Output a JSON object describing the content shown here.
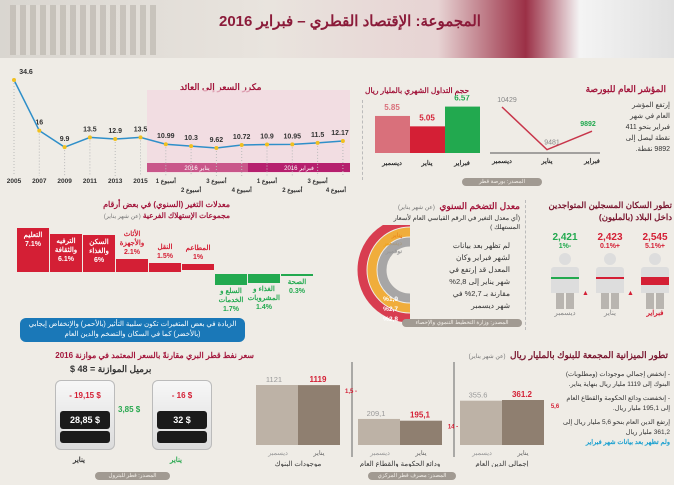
{
  "header": {
    "title": "المجموعة: الإقتصاد القطري – فبراير 2016"
  },
  "pe": {
    "title": "مكرر السعر إلى العائد",
    "month_jan": "يناير 2016",
    "month_feb": "فبراير 2016",
    "labels": [
      "2005",
      "2007",
      "2009",
      "2011",
      "2013",
      "2015",
      "أسبوع 1",
      "أسبوع 2",
      "أسبوع 3",
      "أسبوع 4",
      "أسبوع 1",
      "أسبوع 2",
      "أسبوع 3",
      "أسبوع 4"
    ],
    "values": [
      34.6,
      16,
      9.9,
      13.5,
      12.9,
      13.5,
      10.99,
      10.3,
      9.62,
      10.72,
      10.9,
      10.95,
      11.5,
      12.17
    ],
    "color": "#2f8fc9"
  },
  "volume": {
    "title": "حجم التداول الشهري بالمليار ريال",
    "categories": [
      "ديسمبر",
      "يناير",
      "فبراير"
    ],
    "values": [
      5.85,
      5.05,
      6.57
    ],
    "colors": [
      "#d9707b",
      "#d41f35",
      "#22a94f"
    ]
  },
  "index": {
    "title": "المؤشر العام للبورصة",
    "categories": [
      "ديسمبر",
      "يناير",
      "فبراير"
    ],
    "values": [
      10429,
      9481,
      9892
    ],
    "text": [
      "إرتفع المؤشر",
      "العام في شهر",
      "فبراير بنحو 411",
      "نقطة ليصل إلى",
      "9892 نقطة."
    ],
    "source": "المصدر: بورصة قطر"
  },
  "consumption": {
    "title1": "معدلات التغير (السنوي) في بعض أرقام",
    "title2": "مجموعات الإستهلاك الفرعية",
    "note": "(عن شهر يناير)",
    "items": [
      {
        "label": "التعليم",
        "value": "7.1%",
        "v": 7.1
      },
      {
        "label": "الترفيه والثقافة",
        "value": "6.1%",
        "v": 6.1
      },
      {
        "label": "السكن والغذاء",
        "value": "6%",
        "v": 6
      },
      {
        "label": "الأثاث والأجهزة",
        "value": "2.1%",
        "v": 2.1
      },
      {
        "label": "النقل",
        "value": "1.5%",
        "v": 1.5
      },
      {
        "label": "المطاعم",
        "value": "1%",
        "v": 1
      },
      {
        "label": "السلع و الخدمات",
        "value": "1.7%",
        "v": -1.7
      },
      {
        "label": "الغذاء و المشروبات",
        "value": "1.4%",
        "v": -1.4
      },
      {
        "label": "الصحة",
        "value": "0.3%",
        "v": -0.3
      }
    ]
  },
  "note_box": "الزيادة في بعض المتغيرات تكون سلبية التأثير (بالأحمر) والإنخفاض إيجابي (بالأخضر) كما في السكان والتضخم والدين العام",
  "inflation": {
    "title": "معدل التضخم السنوي",
    "note": "(عن شهر يناير)",
    "sub": "(أي معدل التغير في الرقم القياسي العام لأسعار المستهلك )",
    "legend": [
      "يناير",
      "ديسمبر",
      "نوفمبر"
    ],
    "values": [
      "%2,8",
      "%2,7",
      "%1,9"
    ],
    "colors": [
      "#d41f35",
      "#f0a21c",
      "#9a9a9a"
    ],
    "text": [
      "لم تظهر بعد بيانات",
      "لشهر فبراير وكان",
      "المعدل قد إرتفع في",
      "شهر يناير إلى 2,8%",
      "مقارنة بـ 2,7% في",
      "شهر ديسمبر"
    ],
    "source": "المصدر: وزارة التخطيط التنموي والإحصاء"
  },
  "population": {
    "title1": "تطور السكان المسجلين المتواجدين",
    "title2": "داخل البلاد (بالمليون)",
    "items": [
      {
        "month": "فبراير",
        "value": "2,545",
        "change": "5.1%+",
        "fill": 0.5,
        "color": "#d41f35"
      },
      {
        "month": "يناير",
        "value": "2,423",
        "change": "0.1%+",
        "fill": 0.05,
        "color": "#d41f35"
      },
      {
        "month": "ديسمبر",
        "value": "2,421",
        "change": "1%-",
        "fill": 0.03,
        "color": "#22a94f"
      }
    ]
  },
  "oil": {
    "title": "سعر نفط قطر البري مقارنةً بالسعر المعتمد في موازنة 2016",
    "budget": "برميل الموازنة = 48 $",
    "barrels": [
      {
        "month": "يناير",
        "diff": "- 16 $",
        "price": "32 $"
      },
      {
        "month": "يناير",
        "diff": "- 19,15 $",
        "price": "28,85 $"
      }
    ],
    "change": "3,85 $",
    "source": "المصدر: قطر للبترول"
  },
  "banks": {
    "title": "تطور الميزانية المجمعة للبنوك بالمليار ريال",
    "note": "(عن شهر يناير)",
    "months": [
      "يناير",
      "ديسمبر"
    ],
    "groups": [
      {
        "label": "إجمالي الدين العام",
        "dec": 355.6,
        "jan": 361.2,
        "dec_t": "355.6",
        "jan_t": "361.2",
        "chg": "5,6"
      },
      {
        "label": "ودائع الحكومة والقطاع العام",
        "dec": 209.1,
        "jan": 195.1,
        "dec_t": "209,1",
        "jan_t": "195,1",
        "chg": "14 -"
      },
      {
        "label": "موجودات البنوك",
        "dec": 1121,
        "jan": 1119,
        "dec_t": "1121",
        "jan_t": "1119",
        "chg": "1,5 -"
      }
    ],
    "text": [
      "- إنخفض إجمالي موجودات (ومطلوبات) البنوك إلى 1119 مليار ريال بنهاية يناير.",
      "- إنخفضت ودائع الحكومة والقطاع العام إلى 195,1 مليار ريال.",
      "إرتفع الدين العام بنحو 5,6 مليار ريال إلى 361,2 مليار ريال"
    ],
    "footer": "ولم تظهر بعد بيانات شهر فبراير",
    "source": "المصدر: مصرف قطر المركزي"
  }
}
